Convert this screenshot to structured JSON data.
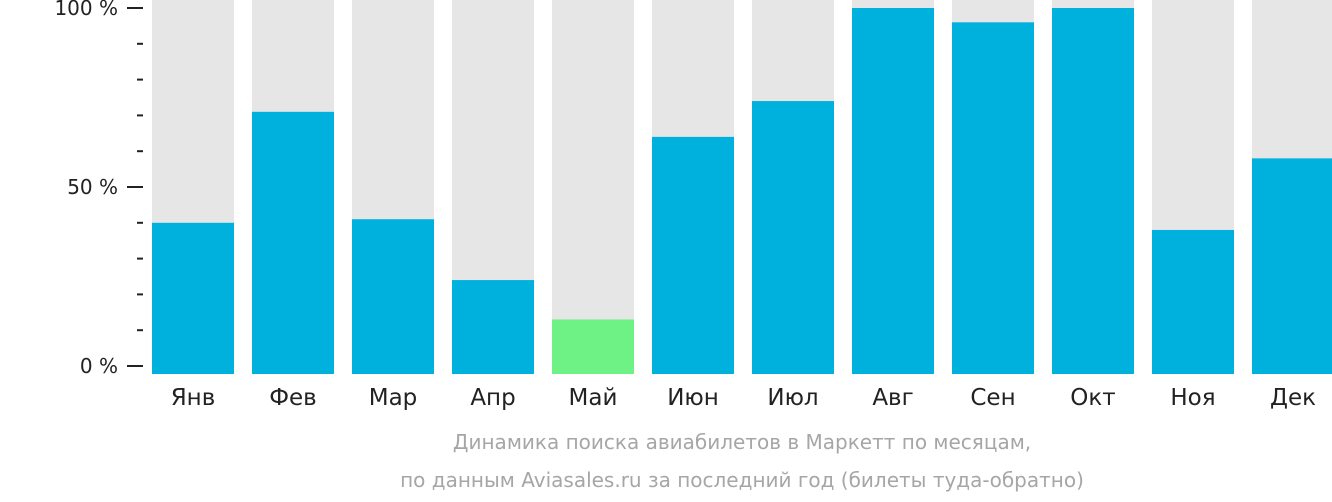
{
  "chart_data": {
    "type": "bar",
    "categories": [
      "Янв",
      "Фев",
      "Мар",
      "Апр",
      "Май",
      "Июн",
      "Июл",
      "Авг",
      "Сен",
      "Окт",
      "Ноя",
      "Дек"
    ],
    "values": [
      40,
      71,
      41,
      24,
      13,
      64,
      74,
      100,
      96,
      100,
      38,
      58
    ],
    "highlight_category": "Май",
    "ylim": [
      0,
      100
    ],
    "y_ticks": [
      {
        "value": 0,
        "label": "0 %"
      },
      {
        "value": 50,
        "label": "50 %"
      },
      {
        "value": 100,
        "label": "100 %"
      }
    ],
    "minor_tick_step": 10,
    "title": "",
    "xlabel": "",
    "ylabel": "",
    "grid": false,
    "colors": {
      "bar": "#00b0dd",
      "highlight": "#6ef286",
      "track": "#e6e6e6",
      "axis_text": "#222222"
    }
  },
  "caption": {
    "line1": "Динамика поиска авиабилетов в Маркетт по месяцам,",
    "line2": "по данным Aviasales.ru за последний год (билеты туда-обратно)"
  }
}
